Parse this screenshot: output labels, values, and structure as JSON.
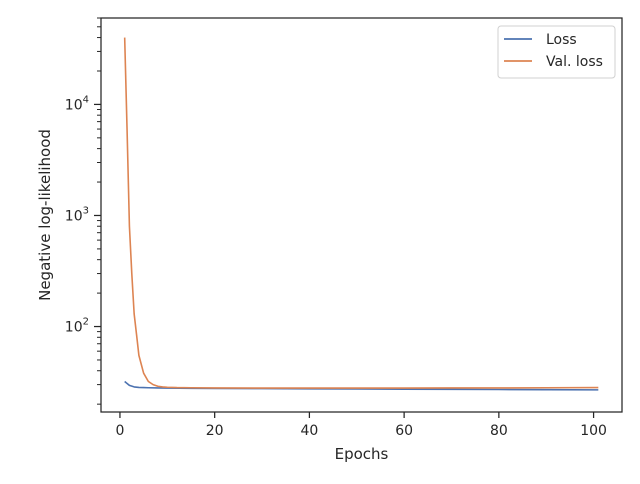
{
  "chart_data": {
    "type": "line",
    "title": "",
    "xlabel": "Epochs",
    "ylabel": "Negative log-likelihood",
    "xlim": [
      -4,
      106
    ],
    "ylim": [
      17,
      60000
    ],
    "yscale": "log",
    "grid": false,
    "legend_position": "top-right",
    "x_ticks": [
      0,
      20,
      40,
      60,
      80,
      100
    ],
    "x_tick_labels": [
      "0",
      "20",
      "40",
      "60",
      "80",
      "100"
    ],
    "y_ticks": [
      100,
      1000,
      10000
    ],
    "y_tick_labels": [
      {
        "base": "10",
        "exp": "2"
      },
      {
        "base": "10",
        "exp": "3"
      },
      {
        "base": "10",
        "exp": "4"
      }
    ],
    "series": [
      {
        "name": "Loss",
        "color": "#4c72b0",
        "x": [
          1,
          2,
          3,
          4,
          5,
          6,
          8,
          10,
          15,
          20,
          30,
          40,
          50,
          60,
          70,
          80,
          90,
          101
        ],
        "y": [
          32,
          29.5,
          28.6,
          28.3,
          28.2,
          28.1,
          28.0,
          27.9,
          27.8,
          27.7,
          27.6,
          27.5,
          27.4,
          27.3,
          27.2,
          27.1,
          27.0,
          26.9
        ]
      },
      {
        "name": "Val. loss",
        "color": "#dd8452",
        "x": [
          1,
          1.5,
          2,
          2.5,
          3,
          3.5,
          4,
          5,
          6,
          7,
          8,
          9,
          10,
          12,
          15,
          20,
          30,
          40,
          50,
          60,
          70,
          80,
          90,
          101
        ],
        "y": [
          40000,
          6000,
          800,
          300,
          130,
          85,
          55,
          38,
          32,
          30,
          29,
          28.6,
          28.4,
          28.2,
          28.1,
          28.0,
          27.9,
          27.9,
          27.9,
          27.9,
          28.0,
          28.0,
          28.1,
          28.2
        ]
      }
    ]
  }
}
